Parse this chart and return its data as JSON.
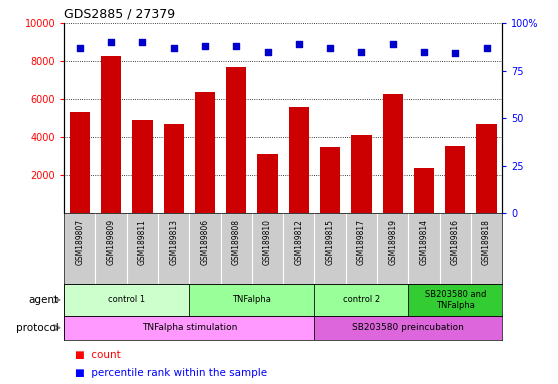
{
  "title": "GDS2885 / 27379",
  "samples": [
    "GSM189807",
    "GSM189809",
    "GSM189811",
    "GSM189813",
    "GSM189806",
    "GSM189808",
    "GSM189810",
    "GSM189812",
    "GSM189815",
    "GSM189817",
    "GSM189819",
    "GSM189814",
    "GSM189816",
    "GSM189818"
  ],
  "counts": [
    5300,
    8250,
    4900,
    4700,
    6350,
    7700,
    3100,
    5600,
    3500,
    4100,
    6250,
    2400,
    3550,
    4700
  ],
  "percentile_ranks": [
    87,
    90,
    90,
    87,
    88,
    88,
    85,
    89,
    87,
    85,
    89,
    85,
    84,
    87
  ],
  "ylim_left": [
    0,
    10000
  ],
  "ylim_right": [
    0,
    100
  ],
  "yticks_left": [
    2000,
    4000,
    6000,
    8000,
    10000
  ],
  "yticks_right": [
    0,
    25,
    50,
    75,
    100
  ],
  "bar_color": "#cc0000",
  "dot_color": "#0000cc",
  "agent_groups": [
    {
      "label": "control 1",
      "start": 0,
      "end": 4,
      "color": "#ccffcc"
    },
    {
      "label": "TNFalpha",
      "start": 4,
      "end": 8,
      "color": "#99ff99"
    },
    {
      "label": "control 2",
      "start": 8,
      "end": 11,
      "color": "#99ff99"
    },
    {
      "label": "SB203580 and\nTNFalpha",
      "start": 11,
      "end": 14,
      "color": "#33cc33"
    }
  ],
  "protocol_groups": [
    {
      "label": "TNFalpha stimulation",
      "start": 0,
      "end": 8,
      "color": "#ff99ff"
    },
    {
      "label": "SB203580 preincubation",
      "start": 8,
      "end": 14,
      "color": "#dd66dd"
    }
  ],
  "sample_bg_color": "#cccccc",
  "grid_linestyle": "dotted",
  "background_color": "#ffffff",
  "main_facecolor": "#ffffff"
}
